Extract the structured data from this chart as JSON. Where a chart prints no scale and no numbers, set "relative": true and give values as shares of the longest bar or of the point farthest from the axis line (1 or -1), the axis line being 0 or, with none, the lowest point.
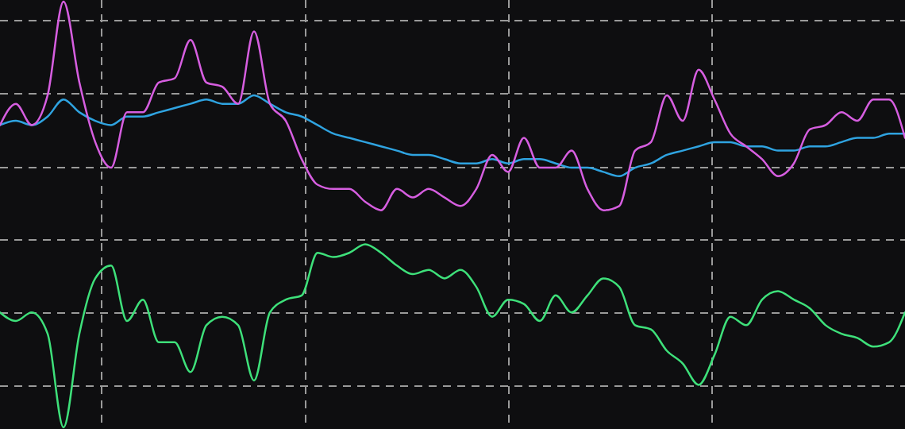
{
  "chart_data": {
    "type": "line",
    "relative": true,
    "grid": true,
    "categories": [
      null,
      null,
      null,
      null,
      null,
      null,
      null,
      null,
      null,
      null,
      null,
      null,
      null,
      null,
      null,
      null,
      null,
      null,
      null,
      null,
      null,
      null,
      null,
      null,
      null,
      null,
      null,
      null,
      null,
      null,
      null,
      null,
      null,
      null,
      null,
      null,
      null,
      null,
      null,
      null,
      null,
      null,
      null,
      null,
      null,
      null,
      null,
      null,
      null,
      null,
      null,
      null,
      null,
      null,
      null,
      null,
      null,
      null
    ],
    "series": [
      {
        "color": "#2fa3e0",
        "values": [
          0.71,
          0.72,
          0.71,
          0.73,
          0.77,
          0.74,
          0.72,
          0.71,
          0.73,
          0.73,
          0.74,
          0.75,
          0.76,
          0.77,
          0.76,
          0.76,
          0.78,
          0.76,
          0.74,
          0.73,
          0.71,
          0.69,
          0.68,
          0.67,
          0.66,
          0.65,
          0.64,
          0.64,
          0.63,
          0.62,
          0.62,
          0.63,
          0.62,
          0.63,
          0.63,
          0.62,
          0.61,
          0.61,
          0.6,
          0.59,
          0.61,
          0.62,
          0.64,
          0.65,
          0.66,
          0.67,
          0.67,
          0.66,
          0.66,
          0.65,
          0.65,
          0.66,
          0.66,
          0.67,
          0.68,
          0.68,
          0.69,
          0.69
        ]
      },
      {
        "color": "#d65ee0",
        "values": [
          0.71,
          0.76,
          0.71,
          0.78,
          1,
          0.81,
          0.67,
          0.61,
          0.74,
          0.74,
          0.81,
          0.82,
          0.91,
          0.81,
          0.8,
          0.76,
          0.93,
          0.76,
          0.72,
          0.63,
          0.57,
          0.56,
          0.56,
          0.53,
          0.51,
          0.56,
          0.54,
          0.56,
          0.54,
          0.52,
          0.56,
          0.64,
          0.6,
          0.68,
          0.61,
          0.61,
          0.65,
          0.56,
          0.51,
          0.52,
          0.65,
          0.67,
          0.78,
          0.72,
          0.84,
          0.77,
          0.69,
          0.66,
          0.63,
          0.59,
          0.62,
          0.7,
          0.71,
          0.74,
          0.72,
          0.77,
          0.77,
          0.68
        ]
      },
      {
        "color": "#3ee07a",
        "values": [
          0.27,
          0.25,
          0.27,
          0.22,
          0,
          0.22,
          0.35,
          0.38,
          0.25,
          0.3,
          0.2,
          0.2,
          0.13,
          0.24,
          0.26,
          0.24,
          0.11,
          0.27,
          0.3,
          0.31,
          0.41,
          0.4,
          0.41,
          0.43,
          0.41,
          0.38,
          0.36,
          0.37,
          0.35,
          0.37,
          0.33,
          0.26,
          0.3,
          0.29,
          0.25,
          0.31,
          0.27,
          0.31,
          0.35,
          0.33,
          0.24,
          0.23,
          0.18,
          0.15,
          0.1,
          0.17,
          0.26,
          0.24,
          0.3,
          0.32,
          0.3,
          0.28,
          0.24,
          0.22,
          0.21,
          0.19,
          0.2,
          0.27
        ]
      }
    ]
  }
}
